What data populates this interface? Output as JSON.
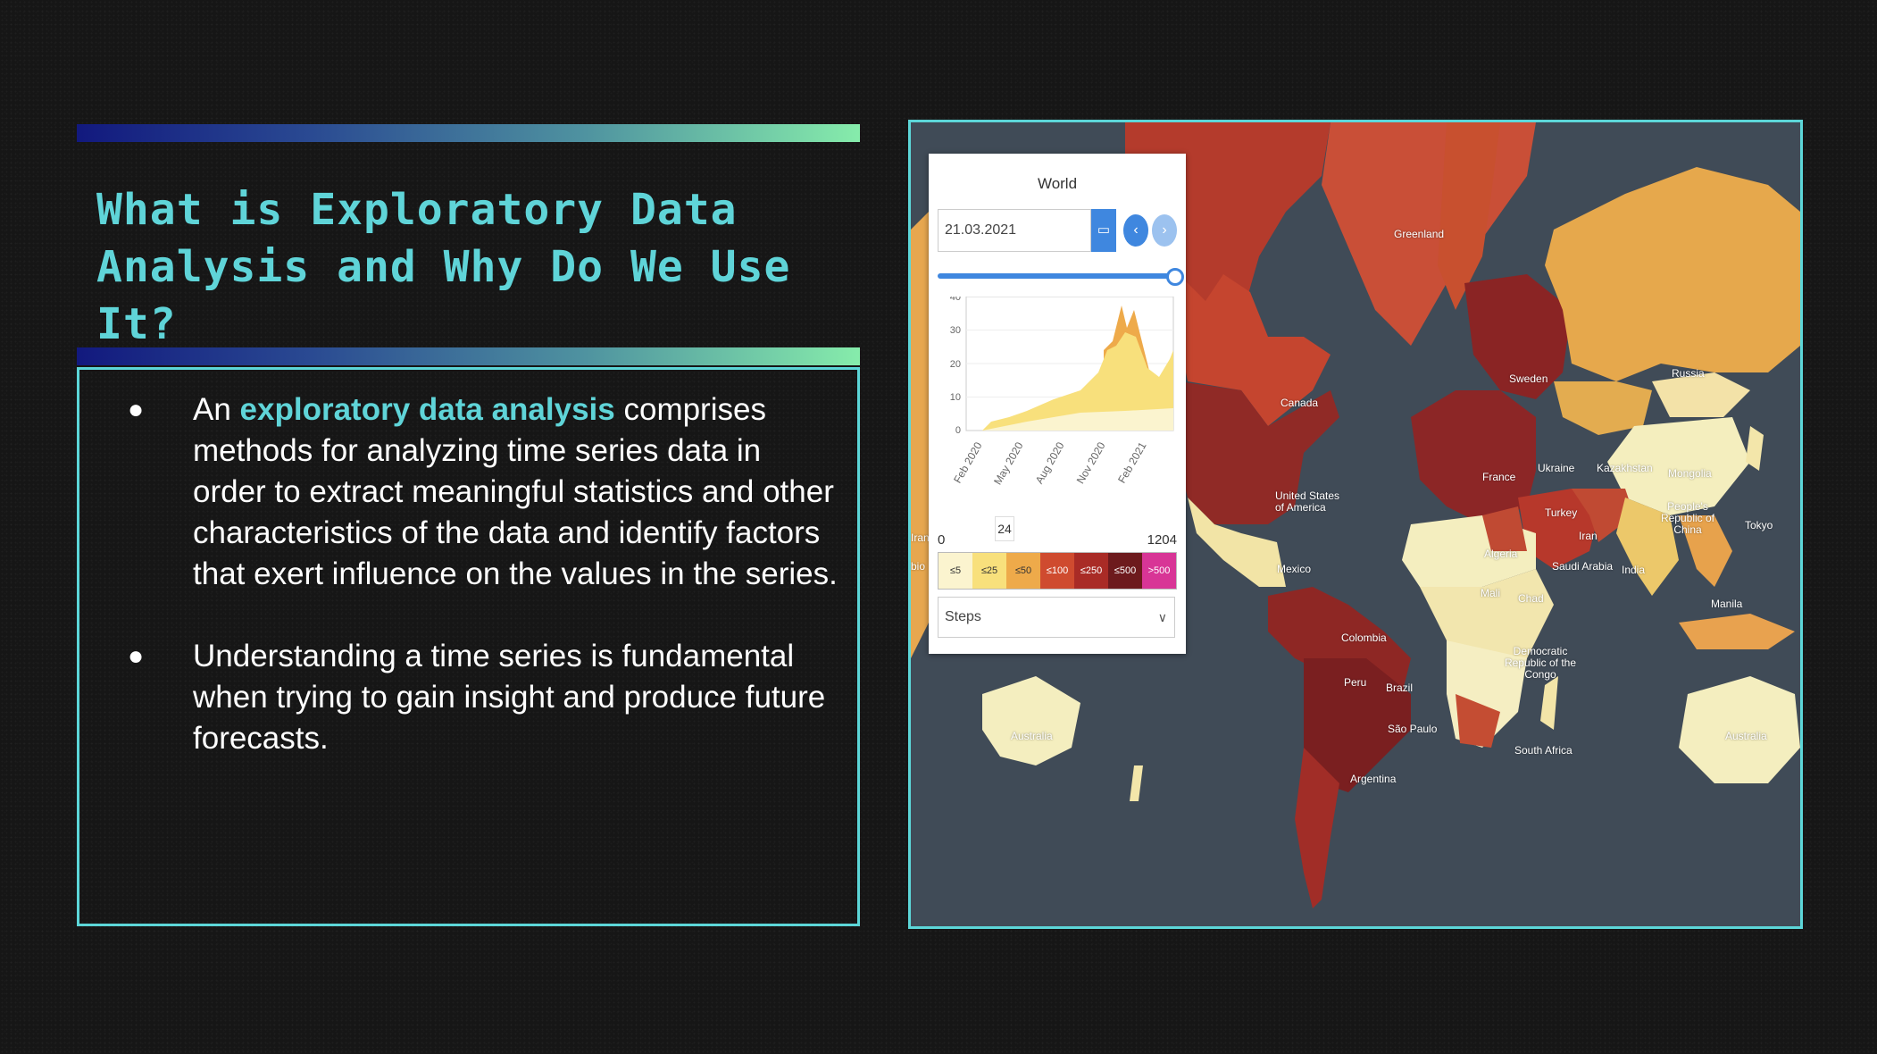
{
  "slide": {
    "title": "What is Exploratory Data Analysis and Why Do We Use It?",
    "bullets": [
      {
        "pre": "An ",
        "highlight": "exploratory data analysis",
        "post": " comprises methods for analyzing time series data in order to extract meaningful statistics and other characteristics of the data and identify factors that exert influence on the values in the series."
      },
      {
        "pre": "",
        "highlight": "",
        "post": "Understanding a time series is fundamental when trying to gain insight and produce future forecasts."
      }
    ],
    "bullet_symbol": "●",
    "colors": {
      "title": "#5fd4d8",
      "accent_border": "#5cd6d8",
      "gradient_start": "#12197e",
      "gradient_end": "#86ecab"
    }
  },
  "map_widget": {
    "region": "World",
    "date": "21.03.2021",
    "calendar_icon": "calendar-icon",
    "prev_label": "‹",
    "next_label": "›",
    "chart": {
      "y_ticks": [
        "40",
        "30",
        "20",
        "10",
        "0"
      ],
      "x_ticks": [
        "Feb 2020",
        "May 2020",
        "Aug 2020",
        "Nov 2020",
        "Feb 2021"
      ]
    },
    "range_min": "0",
    "range_max": "1204",
    "range_value": "24",
    "legend": [
      {
        "label": "≤5",
        "color": "#fbf4cf"
      },
      {
        "label": "≤25",
        "color": "#f8e07c"
      },
      {
        "label": "≤50",
        "color": "#eeaa4a"
      },
      {
        "label": "≤100",
        "color": "#cf4b2f"
      },
      {
        "label": "≤250",
        "color": "#a92b26"
      },
      {
        "label": "≤500",
        "color": "#6d1a1d"
      },
      {
        "label": ">500",
        "color": "#d83596"
      }
    ],
    "steps_label": "Steps",
    "country_labels": {
      "greenland": "Greenland",
      "canada": "Canada",
      "usa": "United States of America",
      "mexico": "Mexico",
      "colombia": "Colombia",
      "peru": "Peru",
      "brazil": "Brazil",
      "sao_paulo": "São Paulo",
      "argentina": "Argentina",
      "russia": "Russia",
      "sweden": "Sweden",
      "ukraine": "Ukraine",
      "france": "France",
      "turkey": "Turkey",
      "kazakhstan": "Kazakhstan",
      "mongolia": "Mongolia",
      "china": "People's Republic of China",
      "tokyo": "Tokyo",
      "algeria": "Algeria",
      "mali": "Mali",
      "chad": "Chad",
      "saudi": "Saudi Arabia",
      "iran": "Iran",
      "india": "India",
      "drc": "Democratic Republic of the Congo",
      "south_africa": "South Africa",
      "manila": "Manila",
      "australia_left": "Australia",
      "australia_right": "Australia",
      "edge_iran": "Iran",
      "edge_bio": "bio"
    }
  }
}
